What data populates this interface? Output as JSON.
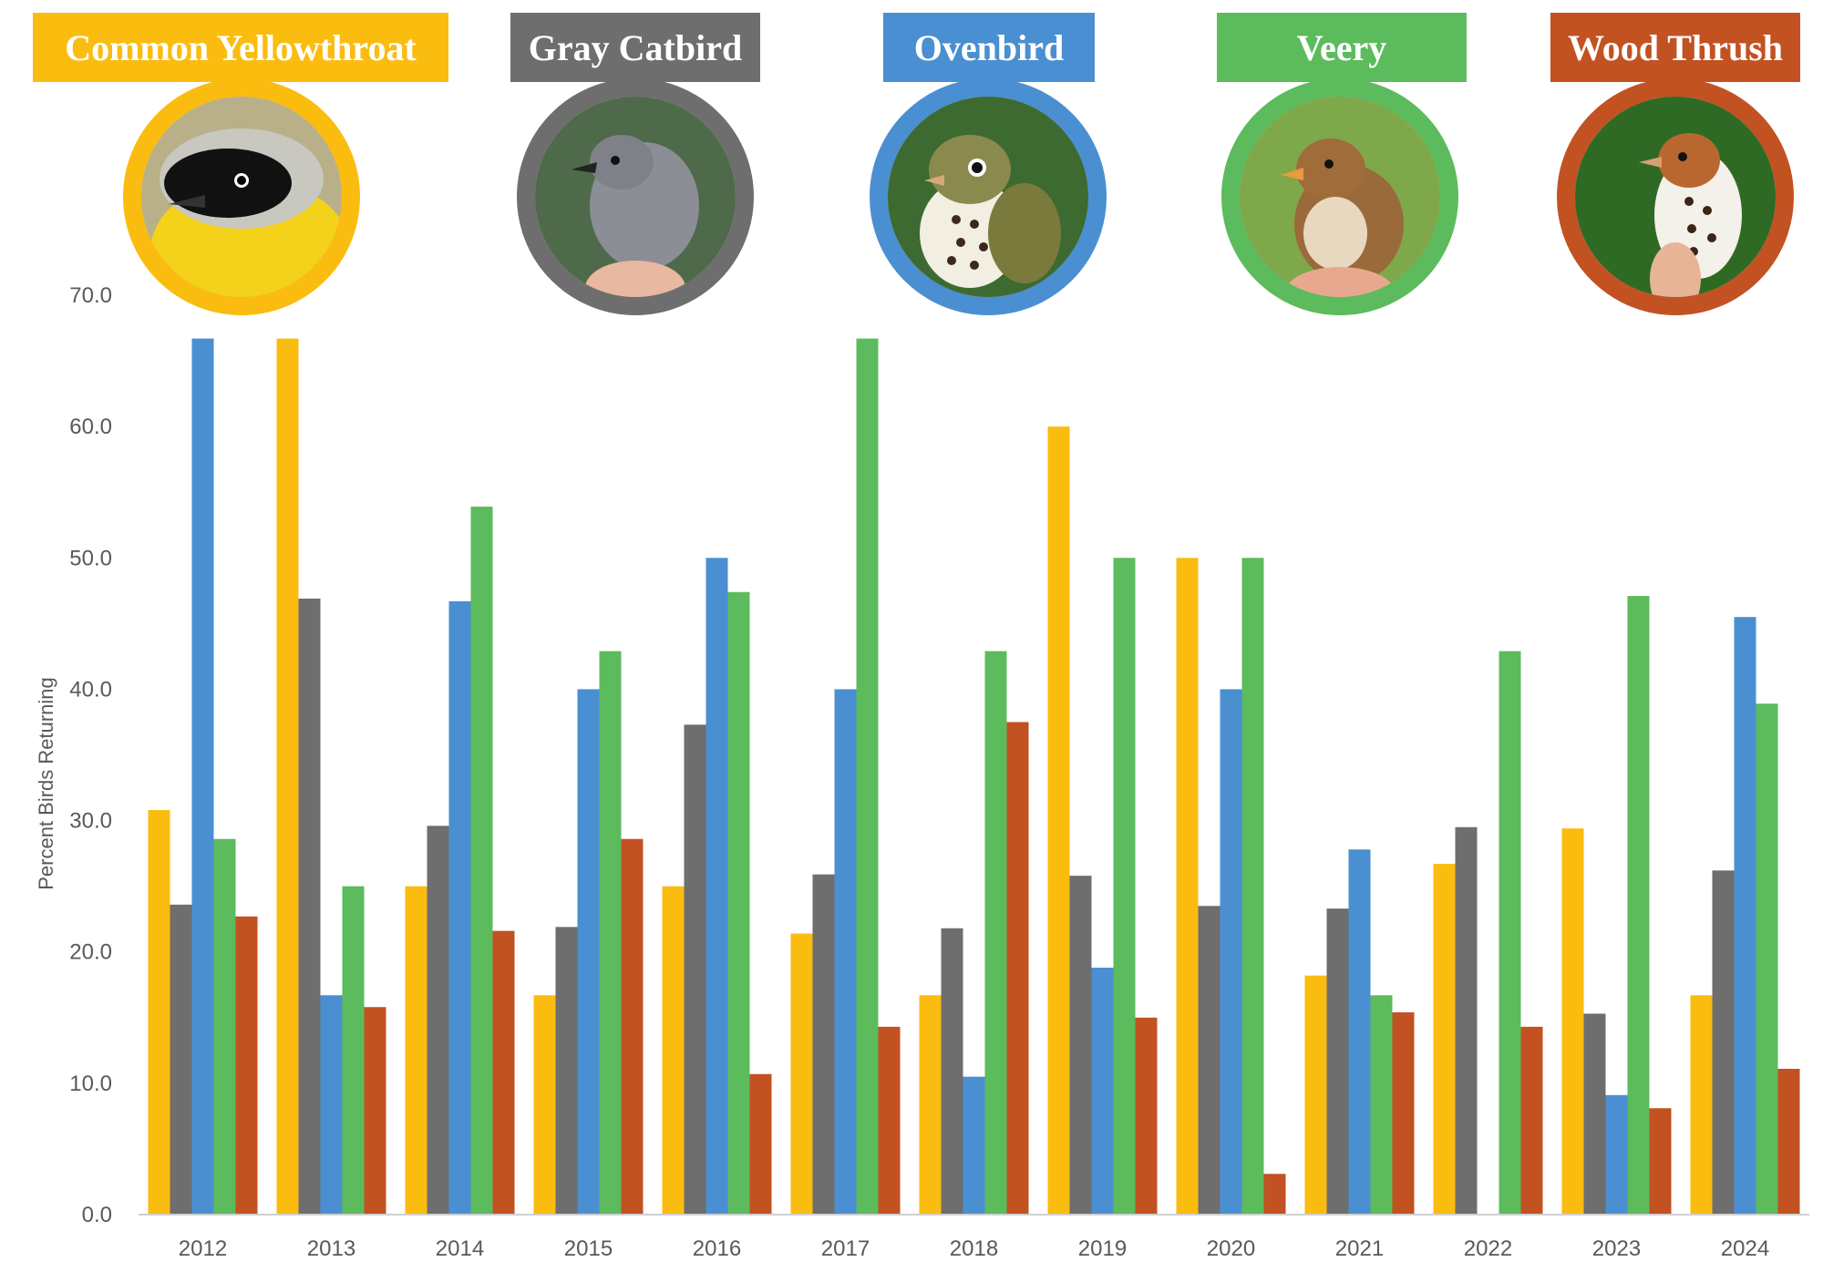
{
  "chart_data": {
    "type": "bar",
    "title": "",
    "xlabel": "",
    "ylabel": "Percent Birds Returning",
    "ylim": [
      0,
      70
    ],
    "yticks": [
      "0.0",
      "10.0",
      "20.0",
      "30.0",
      "40.0",
      "50.0",
      "60.0",
      "70.0"
    ],
    "grid": false,
    "legend_placement": "top",
    "categories": [
      "2012",
      "2013",
      "2014",
      "2015",
      "2016",
      "2017",
      "2018",
      "2019",
      "2020",
      "2021",
      "2022",
      "2023",
      "2024"
    ],
    "series": [
      {
        "name": "Common Yellowthroat",
        "color": "#FBBC10",
        "values": [
          30.8,
          66.7,
          25.0,
          16.7,
          25.0,
          21.4,
          16.7,
          60.0,
          50.0,
          18.2,
          26.7,
          29.4,
          16.7
        ]
      },
      {
        "name": "Gray Catbird",
        "color": "#6E6E6E",
        "values": [
          23.6,
          46.9,
          29.6,
          21.9,
          37.3,
          25.9,
          21.8,
          25.8,
          23.5,
          23.3,
          29.5,
          15.3,
          26.2
        ]
      },
      {
        "name": "Ovenbird",
        "color": "#4A8FD1",
        "values": [
          66.7,
          16.7,
          46.7,
          40.0,
          50.0,
          40.0,
          10.5,
          18.8,
          40.0,
          27.8,
          null,
          9.1,
          45.5
        ]
      },
      {
        "name": "Veery",
        "color": "#5CBB5C",
        "values": [
          28.6,
          25.0,
          53.9,
          42.9,
          47.4,
          66.7,
          42.9,
          50.0,
          50.0,
          16.7,
          42.9,
          47.1,
          38.9
        ]
      },
      {
        "name": "Wood Thrush",
        "color": "#C25222",
        "values": [
          22.7,
          15.8,
          21.6,
          28.6,
          10.7,
          14.3,
          37.5,
          15.0,
          3.1,
          15.4,
          14.3,
          8.1,
          11.1
        ]
      }
    ]
  },
  "legend": [
    {
      "label": "Common Yellowthroat",
      "color": "#FBBC10",
      "icon": "common-yellowthroat-photo"
    },
    {
      "label": "Gray Catbird",
      "color": "#6E6E6E",
      "icon": "gray-catbird-photo"
    },
    {
      "label": "Ovenbird",
      "color": "#4A8FD1",
      "icon": "ovenbird-photo"
    },
    {
      "label": "Veery",
      "color": "#5CBB5C",
      "icon": "veery-photo"
    },
    {
      "label": "Wood Thrush",
      "color": "#C25222",
      "icon": "wood-thrush-photo"
    }
  ]
}
